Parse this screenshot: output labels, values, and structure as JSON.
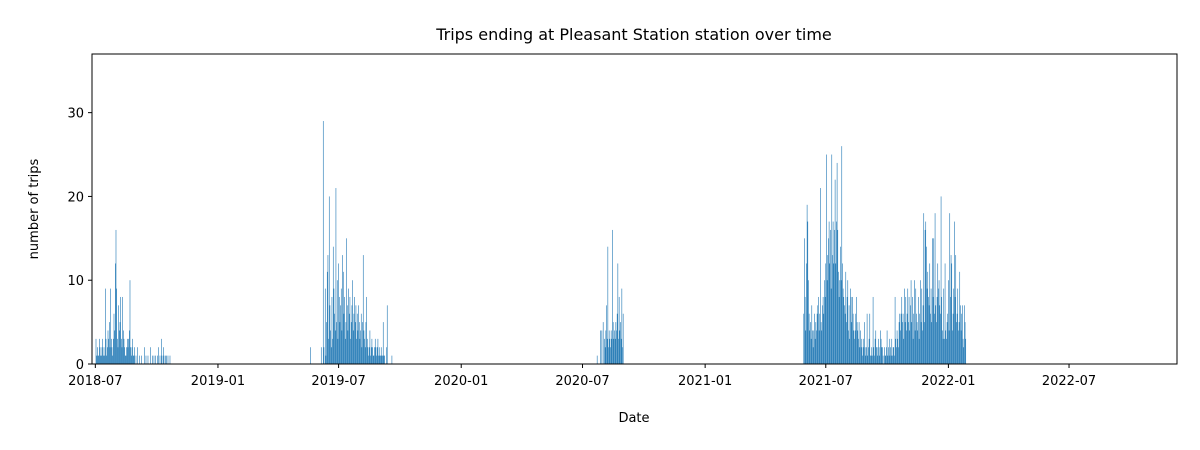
{
  "chart_data": {
    "type": "bar",
    "title": "Trips ending at Pleasant Station station over time",
    "xlabel": "Date",
    "ylabel": "number of trips",
    "xlim": [
      "2018-06-26",
      "2022-12-10"
    ],
    "ylim": [
      0,
      37
    ],
    "x_ticks": [
      "2018-07",
      "2019-01",
      "2019-07",
      "2020-01",
      "2020-07",
      "2021-01",
      "2021-07",
      "2022-01",
      "2022-07"
    ],
    "y_ticks": [
      0,
      10,
      20,
      30
    ],
    "bar_color": "#1f77b4",
    "grid": false,
    "legend": "none",
    "series": [
      {
        "segments": [
          {
            "start": "2018-07-02",
            "values": [
              3,
              1,
              2,
              1,
              1,
              3,
              2,
              1,
              1,
              2,
              3,
              1,
              2,
              1,
              9,
              3,
              1,
              2,
              4,
              3,
              5,
              2,
              9,
              3,
              2,
              1,
              3,
              6,
              4,
              12,
              16,
              9,
              3,
              2,
              7,
              4,
              5,
              8,
              3,
              2,
              8,
              4,
              3,
              2,
              1,
              1,
              2,
              3,
              2,
              3,
              4,
              10,
              2,
              1,
              2,
              3,
              1,
              1,
              2
            ]
          },
          {
            "start": "2018-08-31",
            "values": [
              1,
              0,
              2,
              0,
              0,
              1,
              0,
              0,
              1,
              0,
              0,
              0,
              0,
              2,
              0,
              1,
              0,
              0,
              1,
              0,
              0,
              0,
              2,
              0,
              0,
              1,
              0,
              1,
              0,
              1,
              0,
              0,
              1,
              0,
              2,
              0,
              1,
              0,
              3,
              1,
              0,
              2,
              1,
              0,
              1,
              0,
              1,
              0,
              1,
              0,
              0,
              1
            ]
          },
          {
            "start": "2019-05-20",
            "values": [
              2
            ]
          },
          {
            "start": "2019-06-05",
            "values": [
              2,
              0,
              0,
              29,
              2,
              0,
              9,
              1,
              5,
              11,
              13,
              3,
              20,
              7,
              4,
              2,
              8,
              3,
              14,
              9,
              6,
              4,
              21,
              5,
              10,
              3,
              12,
              8,
              5,
              7,
              9,
              4,
              13,
              11,
              6,
              8,
              3,
              5,
              15,
              7,
              4,
              9,
              6,
              8,
              3,
              5,
              7,
              10,
              4,
              6,
              8,
              5,
              7,
              3,
              6,
              4,
              7,
              5,
              3,
              4,
              6,
              2,
              5,
              13,
              4,
              3,
              2,
              5,
              8,
              3,
              2,
              1,
              2,
              4,
              1,
              2,
              3,
              2,
              1,
              1,
              2,
              3,
              2,
              1,
              2,
              3,
              1,
              2,
              1,
              1,
              2,
              1,
              1,
              5,
              1,
              1,
              0,
              0,
              2,
              7,
              0,
              0,
              0,
              0,
              0,
              0,
              1
            ]
          },
          {
            "start": "2020-07-23",
            "values": [
              1,
              0,
              0,
              0,
              0,
              4,
              0,
              4,
              0,
              5,
              0,
              3,
              2,
              4,
              7,
              3,
              14,
              2,
              4,
              3,
              2,
              4,
              3,
              16,
              5,
              3,
              4,
              3,
              5,
              4,
              6,
              12,
              3,
              8,
              4,
              5,
              3,
              9,
              2,
              6
            ]
          },
          {
            "start": "2021-05-29",
            "values": [
              6,
              15,
              8,
              4,
              12,
              19,
              17,
              10,
              6,
              4,
              5,
              3,
              7,
              4,
              2,
              4,
              6,
              3,
              5,
              4,
              6,
              7,
              8,
              4,
              6,
              21,
              5,
              4,
              7,
              8,
              6,
              10,
              8,
              12,
              25,
              10,
              13,
              15,
              17,
              12,
              16,
              9,
              25,
              13,
              17,
              12,
              16,
              22,
              12,
              17,
              24,
              16,
              11,
              8,
              10,
              14,
              10,
              26,
              12,
              9,
              8,
              7,
              6,
              11,
              5,
              8,
              10,
              4,
              7,
              3,
              9,
              8,
              5,
              8,
              6,
              4,
              3,
              4,
              6,
              8,
              5,
              4,
              3,
              5,
              2,
              4,
              2,
              3,
              1,
              2,
              3,
              5,
              2,
              1,
              2,
              6,
              1,
              2,
              3,
              6,
              1,
              1,
              2,
              1,
              8,
              2,
              1,
              3,
              4,
              2,
              2,
              1,
              3,
              2,
              1,
              4,
              3,
              2,
              2,
              1,
              0,
              2,
              1,
              1,
              2,
              4,
              1,
              2,
              1,
              3,
              2,
              1,
              3,
              1,
              2,
              2,
              1,
              8,
              3,
              2,
              4,
              3,
              2,
              5,
              6,
              4,
              6,
              8,
              5,
              6,
              3,
              9,
              5,
              8,
              4,
              6,
              9,
              5,
              8,
              4,
              7,
              10,
              5,
              8,
              3,
              6,
              10,
              4,
              9,
              6,
              5,
              4,
              8,
              3,
              6,
              10,
              5,
              9,
              4,
              7,
              18,
              5,
              16,
              17,
              14,
              9,
              11,
              8,
              7,
              12,
              6,
              9,
              5,
              15,
              8,
              15,
              6,
              18,
              7,
              5,
              8,
              12,
              9,
              10,
              7,
              6,
              20,
              8,
              4,
              3,
              9,
              3,
              12,
              4,
              3,
              5,
              6,
              10,
              4,
              18,
              8,
              13,
              12,
              4,
              6,
              9,
              17,
              8,
              13,
              5,
              6,
              9,
              4,
              5,
              11,
              7,
              4,
              6,
              7,
              3,
              2,
              7,
              5,
              3
            ]
          }
        ]
      }
    ]
  }
}
